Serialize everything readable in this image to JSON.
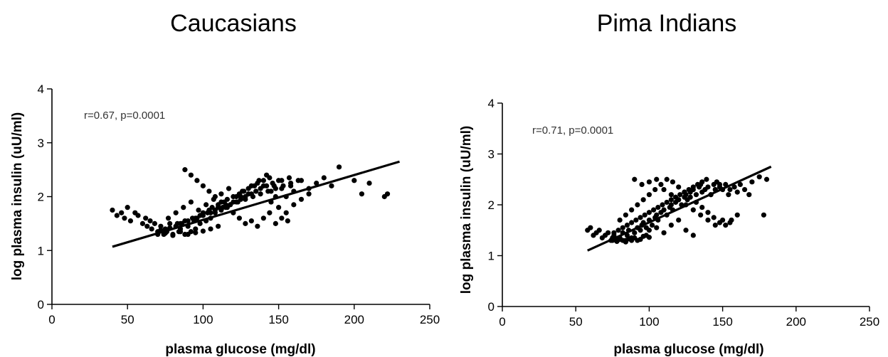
{
  "chart_data": [
    {
      "type": "scatter",
      "title": "Caucasians",
      "xlabel": "plasma glucose (mg/dl)",
      "ylabel": "log plasma insulin (uU/ml)",
      "xlim": [
        0,
        250
      ],
      "ylim": [
        0,
        4
      ],
      "xticks": [
        0,
        50,
        100,
        150,
        200,
        250
      ],
      "yticks": [
        0,
        1,
        2,
        3,
        4
      ],
      "annotation": "r=0.67, p=0.0001",
      "grid": false,
      "regression_line": {
        "x": [
          40,
          230
        ],
        "y": [
          1.07,
          2.65
        ]
      },
      "points": {
        "x": [
          40,
          43,
          46,
          48,
          50,
          52,
          55,
          57,
          60,
          62,
          63,
          65,
          66,
          68,
          70,
          72,
          74,
          75,
          76,
          78,
          80,
          82,
          84,
          85,
          86,
          88,
          90,
          92,
          94,
          95,
          96,
          98,
          100,
          102,
          104,
          105,
          106,
          108,
          110,
          112,
          114,
          115,
          116,
          118,
          120,
          122,
          124,
          125,
          126,
          128,
          130,
          132,
          134,
          135,
          136,
          138,
          140,
          142,
          144,
          145,
          146,
          148,
          150,
          152,
          155,
          158,
          160,
          165,
          170,
          175,
          180,
          185,
          190,
          200,
          205,
          210,
          220,
          222,
          70,
          75,
          80,
          85,
          90,
          95,
          100,
          105,
          110,
          72,
          78,
          83,
          88,
          93,
          98,
          103,
          108,
          113,
          118,
          123,
          128,
          133,
          138,
          143,
          148,
          153,
          158,
          163,
          77,
          82,
          87,
          92,
          97,
          102,
          107,
          112,
          117,
          122,
          127,
          132,
          137,
          142,
          147,
          152,
          157,
          85,
          90,
          95,
          100,
          105,
          110,
          115,
          120,
          125,
          130,
          135,
          140,
          145,
          150,
          155,
          160,
          165,
          170,
          88,
          92,
          96,
          100,
          104,
          108,
          112,
          116,
          120,
          124,
          128,
          132,
          136,
          140,
          144,
          148,
          152,
          156
        ],
        "y": [
          1.75,
          1.65,
          1.7,
          1.6,
          1.8,
          1.55,
          1.7,
          1.65,
          1.5,
          1.6,
          1.45,
          1.55,
          1.4,
          1.5,
          1.35,
          1.45,
          1.3,
          1.4,
          1.35,
          1.5,
          1.3,
          1.45,
          1.35,
          1.4,
          1.5,
          1.3,
          1.45,
          1.35,
          1.55,
          1.4,
          1.6,
          1.5,
          1.7,
          1.55,
          1.75,
          1.6,
          1.8,
          1.7,
          1.85,
          1.75,
          1.9,
          1.8,
          1.95,
          1.85,
          2.0,
          1.9,
          2.05,
          1.95,
          2.1,
          2.0,
          2.15,
          2.05,
          2.2,
          2.1,
          2.25,
          2.15,
          2.3,
          2.2,
          2.35,
          2.1,
          2.25,
          2.0,
          2.3,
          2.15,
          2.0,
          2.2,
          2.1,
          2.3,
          2.15,
          2.25,
          2.35,
          2.2,
          2.55,
          2.3,
          2.05,
          2.25,
          2.0,
          2.05,
          1.3,
          1.32,
          1.28,
          1.35,
          1.3,
          1.33,
          1.36,
          1.4,
          1.45,
          1.38,
          1.42,
          1.5,
          1.55,
          1.6,
          1.65,
          1.7,
          1.75,
          1.8,
          1.85,
          1.9,
          1.95,
          2.0,
          2.05,
          2.1,
          2.15,
          2.2,
          2.25,
          2.3,
          1.6,
          1.7,
          1.8,
          1.9,
          1.75,
          1.85,
          1.95,
          2.05,
          2.15,
          2.0,
          2.1,
          2.2,
          2.3,
          2.4,
          2.2,
          2.3,
          2.35,
          1.5,
          1.55,
          1.6,
          1.65,
          1.7,
          1.8,
          1.85,
          1.9,
          2.0,
          2.05,
          2.1,
          2.2,
          1.9,
          1.8,
          1.7,
          1.85,
          1.95,
          2.05,
          2.5,
          2.4,
          2.3,
          2.2,
          2.1,
          2.0,
          1.9,
          1.8,
          1.7,
          1.6,
          1.5,
          1.55,
          1.45,
          1.6,
          1.7,
          1.5,
          1.6,
          1.55
        ]
      }
    },
    {
      "type": "scatter",
      "title": "Pima Indians",
      "xlabel": "plasma glucose (mg/dl)",
      "ylabel": "log plasma insulin (uU/ml)",
      "xlim": [
        0,
        250
      ],
      "ylim": [
        0,
        4
      ],
      "xticks": [
        0,
        50,
        100,
        150,
        200,
        250
      ],
      "yticks": [
        0,
        1,
        2,
        3,
        4
      ],
      "annotation": "r=0.71, p=0.0001",
      "grid": false,
      "regression_line": {
        "x": [
          58,
          183
        ],
        "y": [
          1.1,
          2.75
        ]
      },
      "points": {
        "x": [
          58,
          60,
          62,
          64,
          66,
          68,
          70,
          72,
          74,
          75,
          76,
          78,
          80,
          82,
          84,
          85,
          86,
          88,
          90,
          92,
          94,
          95,
          96,
          98,
          100,
          102,
          104,
          105,
          106,
          108,
          110,
          112,
          114,
          115,
          116,
          118,
          120,
          122,
          124,
          125,
          126,
          128,
          130,
          132,
          134,
          135,
          136,
          138,
          140,
          142,
          144,
          145,
          146,
          148,
          150,
          152,
          154,
          155,
          158,
          160,
          162,
          165,
          168,
          170,
          175,
          178,
          180,
          75,
          78,
          80,
          82,
          84,
          86,
          88,
          90,
          92,
          94,
          96,
          98,
          100,
          76,
          79,
          82,
          85,
          88,
          91,
          94,
          97,
          100,
          103,
          106,
          109,
          112,
          115,
          118,
          121,
          124,
          127,
          130,
          133,
          136,
          139,
          142,
          145,
          148,
          80,
          84,
          88,
          92,
          96,
          100,
          104,
          108,
          112,
          116,
          120,
          124,
          128,
          132,
          136,
          140,
          144,
          148,
          152,
          156,
          160,
          90,
          95,
          100,
          105,
          110,
          115,
          120,
          125,
          130,
          135,
          140,
          145,
          150,
          155,
          95,
          100,
          105,
          110,
          115,
          120,
          125,
          130
        ],
        "y": [
          1.5,
          1.55,
          1.4,
          1.45,
          1.5,
          1.35,
          1.4,
          1.45,
          1.3,
          1.35,
          1.4,
          1.3,
          1.35,
          1.45,
          1.3,
          1.4,
          1.5,
          1.35,
          1.45,
          1.55,
          1.5,
          1.6,
          1.65,
          1.55,
          1.7,
          1.6,
          1.75,
          1.8,
          1.7,
          1.85,
          1.9,
          1.8,
          1.95,
          2.0,
          1.9,
          2.05,
          2.1,
          2.0,
          2.15,
          2.2,
          2.1,
          2.25,
          2.3,
          2.2,
          2.35,
          2.4,
          2.25,
          2.3,
          2.35,
          2.2,
          2.4,
          2.3,
          2.45,
          2.35,
          2.3,
          2.4,
          2.2,
          2.3,
          2.35,
          2.25,
          2.4,
          2.3,
          2.2,
          2.45,
          2.55,
          1.8,
          2.5,
          1.3,
          1.28,
          1.32,
          1.3,
          1.27,
          1.33,
          1.3,
          1.35,
          1.3,
          1.32,
          1.38,
          1.4,
          1.36,
          1.45,
          1.5,
          1.55,
          1.6,
          1.65,
          1.7,
          1.75,
          1.8,
          1.85,
          1.9,
          1.95,
          2.0,
          2.05,
          2.1,
          2.15,
          2.2,
          2.25,
          2.3,
          2.35,
          2.4,
          2.45,
          2.5,
          2.2,
          2.3,
          2.4,
          1.7,
          1.8,
          1.9,
          2.0,
          2.1,
          2.2,
          2.3,
          2.4,
          2.5,
          2.45,
          2.35,
          2.25,
          2.15,
          2.05,
          1.95,
          1.85,
          1.75,
          1.65,
          1.6,
          1.7,
          1.8,
          2.5,
          2.4,
          2.45,
          2.5,
          2.3,
          2.2,
          2.1,
          2.0,
          1.9,
          1.8,
          1.7,
          1.6,
          1.7,
          1.65,
          1.6,
          1.5,
          1.55,
          1.45,
          1.6,
          1.7,
          1.5,
          1.4
        ]
      }
    }
  ]
}
